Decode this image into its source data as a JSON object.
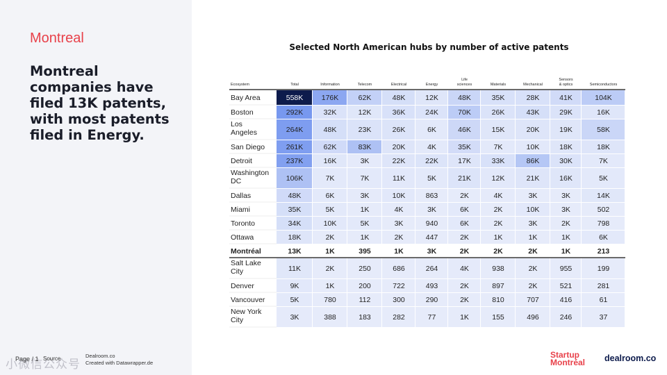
{
  "slide": {
    "section_title": "Montreal",
    "headline": "Montreal companies have filed 13K patents, with most patents filed in Energy.",
    "page_label": "Page / 1",
    "source_label": "Source",
    "source_lines": [
      "Dealroom.co",
      "Created with Datawrapper.de"
    ],
    "watermark": "小微信公众号",
    "logos": {
      "startup_line1": "Startup",
      "startup_line2": "Montréal",
      "dealroom": "dealroom.co"
    }
  },
  "colors": {
    "accent": "#e8414a",
    "dark_cell": "#0d1b4c",
    "strong_blue": "#5b83ec",
    "pale_blue": "#e6ebfa"
  },
  "chart_data": {
    "type": "table",
    "title": "Selected North American hubs by number of active patents",
    "columns": [
      "Ecosystem",
      "Total",
      "Information",
      "Telecom",
      "Electrical",
      "Energy",
      [
        "Life",
        "sciences"
      ],
      "Materials",
      "Mechanical",
      [
        "Sensors",
        "& optics"
      ],
      "Semiconductors"
    ],
    "highlight_row": "Montréal",
    "rows": [
      {
        "label": [
          "Bay Area"
        ],
        "values": [
          "558K",
          "176K",
          "62K",
          "48K",
          "12K",
          "48K",
          "35K",
          "28K",
          "41K",
          "104K"
        ],
        "intensity": [
          1.0,
          0.65,
          0.25,
          0.12,
          0.05,
          0.2,
          0.1,
          0.1,
          0.15,
          0.3
        ]
      },
      {
        "label": [
          "Boston"
        ],
        "values": [
          "292K",
          "32K",
          "12K",
          "36K",
          "24K",
          "70K",
          "26K",
          "43K",
          "29K",
          "16K"
        ],
        "intensity": [
          0.8,
          0.08,
          0.04,
          0.1,
          0.08,
          0.3,
          0.08,
          0.12,
          0.08,
          0.05
        ]
      },
      {
        "label": [
          "Los",
          "Angeles"
        ],
        "values": [
          "264K",
          "48K",
          "23K",
          "26K",
          "6K",
          "46K",
          "15K",
          "20K",
          "19K",
          "58K"
        ],
        "intensity": [
          0.75,
          0.12,
          0.08,
          0.07,
          0.02,
          0.18,
          0.05,
          0.06,
          0.05,
          0.2
        ]
      },
      {
        "label": [
          "San Diego"
        ],
        "values": [
          "261K",
          "62K",
          "83K",
          "20K",
          "4K",
          "35K",
          "7K",
          "10K",
          "18K",
          "18K"
        ],
        "intensity": [
          0.74,
          0.16,
          0.4,
          0.06,
          0.02,
          0.14,
          0.02,
          0.03,
          0.05,
          0.06
        ]
      },
      {
        "label": [
          "Detroit"
        ],
        "values": [
          "237K",
          "16K",
          "3K",
          "22K",
          "22K",
          "17K",
          "33K",
          "86K",
          "30K",
          "7K"
        ],
        "intensity": [
          0.72,
          0.04,
          0.01,
          0.06,
          0.07,
          0.06,
          0.1,
          0.35,
          0.08,
          0.02
        ]
      },
      {
        "label": [
          "Washington",
          "DC"
        ],
        "values": [
          "106K",
          "7K",
          "7K",
          "11K",
          "5K",
          "21K",
          "12K",
          "21K",
          "16K",
          "5K"
        ],
        "intensity": [
          0.4,
          0.02,
          0.02,
          0.03,
          0.02,
          0.07,
          0.03,
          0.06,
          0.05,
          0.02
        ]
      },
      {
        "label": [
          "Dallas"
        ],
        "values": [
          "48K",
          "6K",
          "3K",
          "10K",
          "863",
          "2K",
          "4K",
          "3K",
          "3K",
          "14K"
        ],
        "intensity": [
          0.16,
          0.02,
          0.01,
          0.03,
          0.0,
          0.0,
          0.01,
          0.0,
          0.0,
          0.04
        ]
      },
      {
        "label": [
          "Miami"
        ],
        "values": [
          "35K",
          "5K",
          "1K",
          "4K",
          "3K",
          "6K",
          "2K",
          "10K",
          "3K",
          "502"
        ],
        "intensity": [
          0.12,
          0.02,
          0.0,
          0.01,
          0.0,
          0.02,
          0.0,
          0.03,
          0.0,
          0.0
        ]
      },
      {
        "label": [
          "Toronto"
        ],
        "values": [
          "34K",
          "10K",
          "5K",
          "3K",
          "940",
          "6K",
          "2K",
          "3K",
          "2K",
          "798"
        ],
        "intensity": [
          0.12,
          0.03,
          0.02,
          0.0,
          0.0,
          0.02,
          0.0,
          0.0,
          0.0,
          0.0
        ]
      },
      {
        "label": [
          "Ottawa"
        ],
        "values": [
          "18K",
          "2K",
          "1K",
          "2K",
          "447",
          "2K",
          "1K",
          "1K",
          "1K",
          "6K"
        ],
        "intensity": [
          0.06,
          0.0,
          0.0,
          0.0,
          0.0,
          0.0,
          0.0,
          0.0,
          0.0,
          0.02
        ]
      },
      {
        "label": [
          "Montréal"
        ],
        "values": [
          "13K",
          "1K",
          "395",
          "1K",
          "3K",
          "2K",
          "2K",
          "2K",
          "1K",
          "213"
        ],
        "intensity": [
          0.05,
          0.0,
          0.0,
          0.0,
          0.0,
          0.0,
          0.0,
          0.0,
          0.0,
          0.0
        ]
      },
      {
        "label": [
          "Salt Lake",
          "City"
        ],
        "values": [
          "11K",
          "2K",
          "250",
          "686",
          "264",
          "4K",
          "938",
          "2K",
          "955",
          "199"
        ],
        "intensity": [
          0.04,
          0.0,
          0.0,
          0.0,
          0.0,
          0.01,
          0.0,
          0.0,
          0.0,
          0.0
        ]
      },
      {
        "label": [
          "Denver"
        ],
        "values": [
          "9K",
          "1K",
          "200",
          "722",
          "493",
          "2K",
          "897",
          "2K",
          "521",
          "281"
        ],
        "intensity": [
          0.03,
          0.0,
          0.0,
          0.0,
          0.0,
          0.0,
          0.0,
          0.0,
          0.0,
          0.0
        ]
      },
      {
        "label": [
          "Vancouver"
        ],
        "values": [
          "5K",
          "780",
          "112",
          "300",
          "290",
          "2K",
          "810",
          "707",
          "416",
          "61"
        ],
        "intensity": [
          0.02,
          0.0,
          0.0,
          0.0,
          0.0,
          0.0,
          0.0,
          0.0,
          0.0,
          0.0
        ]
      },
      {
        "label": [
          "New York",
          "City"
        ],
        "values": [
          "3K",
          "388",
          "183",
          "282",
          "77",
          "1K",
          "155",
          "496",
          "246",
          "37"
        ],
        "intensity": [
          0.01,
          0.0,
          0.0,
          0.0,
          0.0,
          0.0,
          0.0,
          0.0,
          0.0,
          0.0
        ]
      }
    ]
  }
}
